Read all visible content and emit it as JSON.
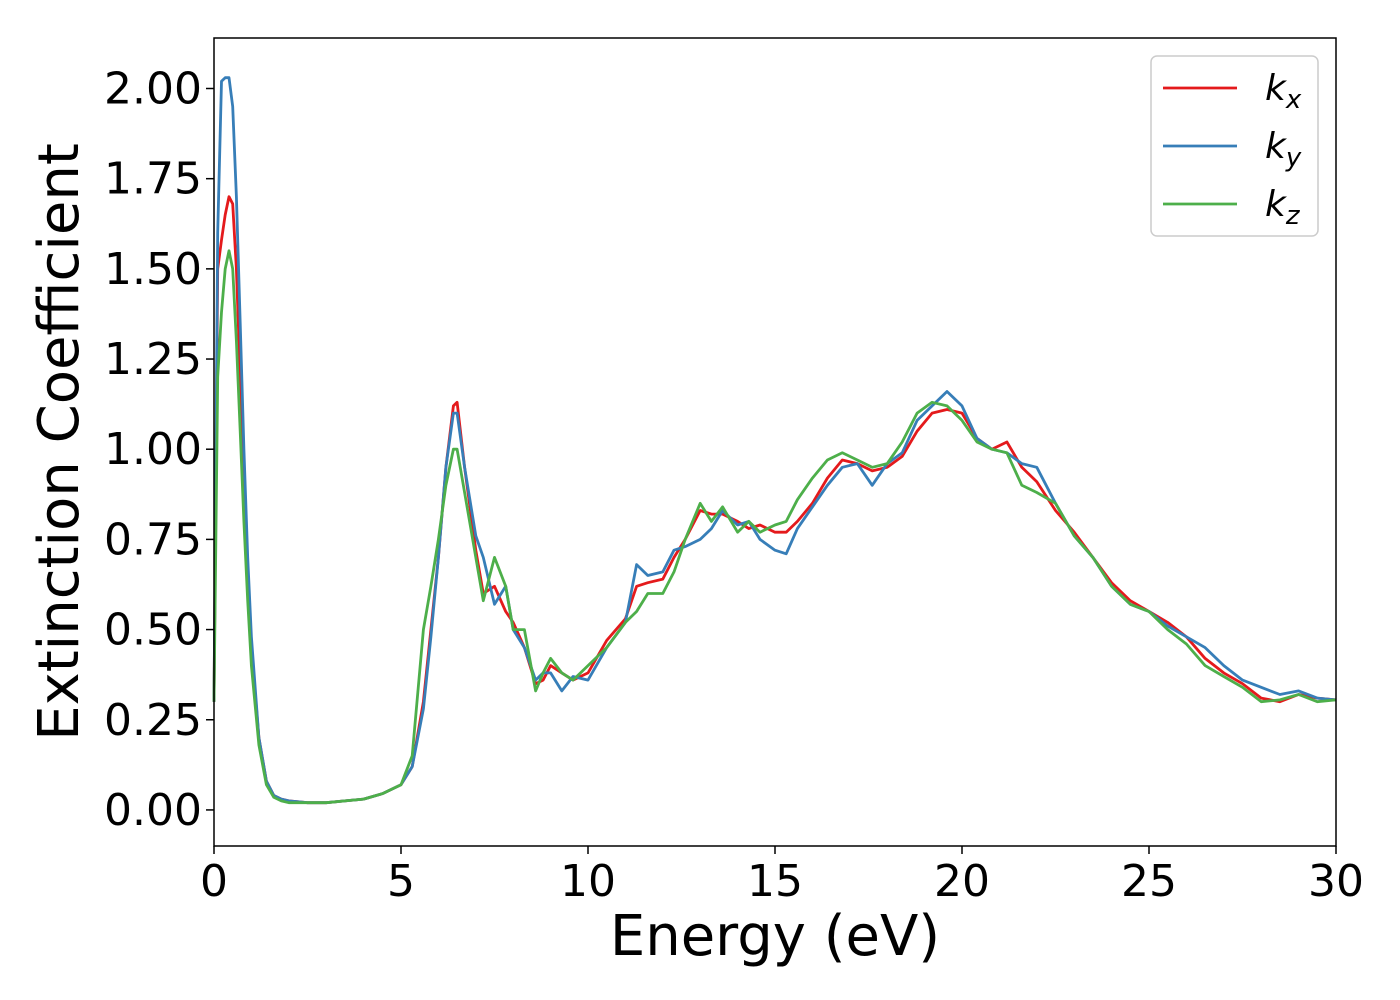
{
  "chart_data": {
    "type": "line",
    "xlabel": "Energy (eV)",
    "ylabel": "Extinction Coefficient",
    "xlim": [
      0,
      30
    ],
    "ylim": [
      -0.1,
      2.14
    ],
    "x_ticks": [
      "0",
      "5",
      "10",
      "15",
      "20",
      "25",
      "30"
    ],
    "y_ticks": [
      "0.00",
      "0.25",
      "0.50",
      "0.75",
      "1.00",
      "1.25",
      "1.50",
      "1.75",
      "2.00"
    ],
    "grid": false,
    "legend_position": "top-right",
    "series": [
      {
        "name": "k",
        "subscript": "x",
        "color": "#e41a1c",
        "x": [
          0,
          0.1,
          0.2,
          0.3,
          0.4,
          0.5,
          0.6,
          0.7,
          0.8,
          0.9,
          1.0,
          1.2,
          1.4,
          1.6,
          1.8,
          2.0,
          2.5,
          3.0,
          3.5,
          4.0,
          4.5,
          5.0,
          5.3,
          5.6,
          5.8,
          6.0,
          6.2,
          6.4,
          6.5,
          6.7,
          7.0,
          7.2,
          7.5,
          7.8,
          8.0,
          8.3,
          8.6,
          8.8,
          9.0,
          9.3,
          9.6,
          10.0,
          10.5,
          11.0,
          11.3,
          11.6,
          12.0,
          12.3,
          12.6,
          13.0,
          13.3,
          13.6,
          14.0,
          14.3,
          14.6,
          15.0,
          15.3,
          15.6,
          16.0,
          16.4,
          16.8,
          17.2,
          17.6,
          18.0,
          18.4,
          18.8,
          19.2,
          19.6,
          20.0,
          20.4,
          20.8,
          21.2,
          21.6,
          22.0,
          22.5,
          23.0,
          23.5,
          24.0,
          24.5,
          25.0,
          25.5,
          26.0,
          26.5,
          27.0,
          27.5,
          28.0,
          28.5,
          29.0,
          29.5,
          30.0
        ],
        "y": [
          0.3,
          1.5,
          1.58,
          1.65,
          1.7,
          1.68,
          1.5,
          1.2,
          0.9,
          0.65,
          0.45,
          0.2,
          0.08,
          0.04,
          0.03,
          0.025,
          0.02,
          0.02,
          0.025,
          0.03,
          0.045,
          0.07,
          0.12,
          0.3,
          0.5,
          0.7,
          0.95,
          1.12,
          1.13,
          0.95,
          0.72,
          0.6,
          0.62,
          0.55,
          0.52,
          0.45,
          0.35,
          0.36,
          0.4,
          0.38,
          0.36,
          0.38,
          0.47,
          0.53,
          0.62,
          0.63,
          0.64,
          0.7,
          0.75,
          0.83,
          0.82,
          0.82,
          0.8,
          0.78,
          0.79,
          0.77,
          0.77,
          0.8,
          0.85,
          0.92,
          0.97,
          0.96,
          0.94,
          0.95,
          0.98,
          1.05,
          1.1,
          1.11,
          1.1,
          1.03,
          1.0,
          1.02,
          0.95,
          0.91,
          0.83,
          0.77,
          0.7,
          0.63,
          0.58,
          0.55,
          0.52,
          0.48,
          0.42,
          0.38,
          0.35,
          0.31,
          0.3,
          0.32,
          0.31,
          0.305
        ]
      },
      {
        "name": "k",
        "subscript": "y",
        "color": "#377eb8",
        "x": [
          0,
          0.1,
          0.2,
          0.3,
          0.4,
          0.5,
          0.6,
          0.7,
          0.8,
          0.9,
          1.0,
          1.2,
          1.4,
          1.6,
          1.8,
          2.0,
          2.5,
          3.0,
          3.5,
          4.0,
          4.5,
          5.0,
          5.3,
          5.6,
          5.8,
          6.0,
          6.2,
          6.4,
          6.5,
          6.7,
          7.0,
          7.2,
          7.5,
          7.8,
          8.0,
          8.3,
          8.6,
          8.8,
          9.0,
          9.3,
          9.6,
          10.0,
          10.5,
          11.0,
          11.3,
          11.6,
          12.0,
          12.3,
          12.6,
          13.0,
          13.3,
          13.6,
          14.0,
          14.3,
          14.6,
          15.0,
          15.3,
          15.6,
          16.0,
          16.4,
          16.8,
          17.2,
          17.6,
          18.0,
          18.4,
          18.8,
          19.2,
          19.6,
          20.0,
          20.4,
          20.8,
          21.2,
          21.6,
          22.0,
          22.5,
          23.0,
          23.5,
          24.0,
          24.5,
          25.0,
          25.5,
          26.0,
          26.5,
          27.0,
          27.5,
          28.0,
          28.5,
          29.0,
          29.5,
          30.0
        ],
        "y": [
          0.3,
          1.6,
          2.02,
          2.03,
          2.03,
          1.95,
          1.7,
          1.35,
          1.0,
          0.7,
          0.48,
          0.2,
          0.08,
          0.04,
          0.03,
          0.025,
          0.02,
          0.02,
          0.025,
          0.03,
          0.045,
          0.07,
          0.12,
          0.28,
          0.48,
          0.7,
          0.95,
          1.1,
          1.1,
          0.95,
          0.76,
          0.7,
          0.57,
          0.62,
          0.5,
          0.45,
          0.36,
          0.38,
          0.38,
          0.33,
          0.37,
          0.36,
          0.45,
          0.52,
          0.68,
          0.65,
          0.66,
          0.72,
          0.73,
          0.75,
          0.78,
          0.83,
          0.79,
          0.8,
          0.75,
          0.72,
          0.71,
          0.78,
          0.84,
          0.9,
          0.95,
          0.96,
          0.9,
          0.96,
          0.99,
          1.08,
          1.12,
          1.16,
          1.12,
          1.03,
          1.0,
          0.99,
          0.96,
          0.95,
          0.85,
          0.76,
          0.7,
          0.62,
          0.57,
          0.55,
          0.51,
          0.48,
          0.45,
          0.4,
          0.36,
          0.34,
          0.32,
          0.33,
          0.31,
          0.305
        ]
      },
      {
        "name": "k",
        "subscript": "z",
        "color": "#4daf4a",
        "x": [
          0,
          0.1,
          0.2,
          0.3,
          0.4,
          0.5,
          0.6,
          0.7,
          0.8,
          0.9,
          1.0,
          1.2,
          1.4,
          1.6,
          1.8,
          2.0,
          2.5,
          3.0,
          3.5,
          4.0,
          4.5,
          5.0,
          5.3,
          5.6,
          5.8,
          6.0,
          6.2,
          6.4,
          6.5,
          6.7,
          7.0,
          7.2,
          7.5,
          7.8,
          8.0,
          8.3,
          8.6,
          8.8,
          9.0,
          9.3,
          9.6,
          10.0,
          10.5,
          11.0,
          11.3,
          11.6,
          12.0,
          12.3,
          12.6,
          13.0,
          13.3,
          13.6,
          14.0,
          14.3,
          14.6,
          15.0,
          15.3,
          15.6,
          16.0,
          16.4,
          16.8,
          17.2,
          17.6,
          18.0,
          18.4,
          18.8,
          19.2,
          19.6,
          20.0,
          20.4,
          20.8,
          21.2,
          21.6,
          22.0,
          22.5,
          23.0,
          23.5,
          24.0,
          24.5,
          25.0,
          25.5,
          26.0,
          26.5,
          27.0,
          27.5,
          28.0,
          28.5,
          29.0,
          29.5,
          30.0
        ],
        "y": [
          0.3,
          1.2,
          1.38,
          1.5,
          1.55,
          1.5,
          1.3,
          1.05,
          0.8,
          0.58,
          0.4,
          0.18,
          0.07,
          0.035,
          0.025,
          0.02,
          0.02,
          0.02,
          0.025,
          0.03,
          0.045,
          0.07,
          0.15,
          0.5,
          0.62,
          0.75,
          0.9,
          1.0,
          1.0,
          0.88,
          0.7,
          0.58,
          0.7,
          0.62,
          0.5,
          0.5,
          0.33,
          0.38,
          0.42,
          0.38,
          0.36,
          0.4,
          0.45,
          0.52,
          0.55,
          0.6,
          0.6,
          0.66,
          0.75,
          0.85,
          0.8,
          0.84,
          0.77,
          0.8,
          0.77,
          0.79,
          0.8,
          0.86,
          0.92,
          0.97,
          0.99,
          0.97,
          0.95,
          0.96,
          1.02,
          1.1,
          1.13,
          1.12,
          1.08,
          1.02,
          1.0,
          0.99,
          0.9,
          0.88,
          0.85,
          0.76,
          0.7,
          0.62,
          0.57,
          0.55,
          0.5,
          0.46,
          0.4,
          0.37,
          0.34,
          0.3,
          0.305,
          0.32,
          0.3,
          0.305
        ]
      }
    ]
  }
}
